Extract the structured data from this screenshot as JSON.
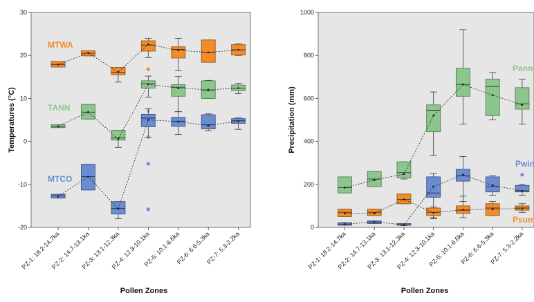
{
  "chart_data": [
    {
      "type": "box",
      "xlabel": "Pollen Zones",
      "ylabel": "Temperatures (°C)",
      "ylim": [
        -20,
        30
      ],
      "yticks": [
        -20,
        -10,
        0,
        10,
        20,
        30
      ],
      "grid": false,
      "categories": [
        "PZ-1: 18.2-14.7ka",
        "PZ-2: 14.7-13.1ka",
        "PZ-3: 13.1-12.3ka",
        "PZ-4: 12.3-10.1ka",
        "PZ-5: 10.1-6.6ka",
        "PZ-6: 6.6-5.3ka",
        "PZ-7: 5.3-2.2ka"
      ],
      "series": [
        {
          "name": "MTWA",
          "color": "#f28c28",
          "boxes": [
            {
              "min": 17.3,
              "q1": 17.3,
              "median": 17.9,
              "q3": 18.6,
              "max": 18.6,
              "outliers": []
            },
            {
              "min": 19.9,
              "q1": 19.9,
              "median": 20.5,
              "q3": 21.1,
              "max": 21.1,
              "outliers": []
            },
            {
              "min": 13.8,
              "q1": 15.5,
              "median": 16.1,
              "q3": 17.2,
              "max": 17.2,
              "outliers": []
            },
            {
              "min": 19.5,
              "q1": 21.0,
              "median": 22.4,
              "q3": 23.4,
              "max": 24.0,
              "outliers": [
                16.8
              ]
            },
            {
              "min": 16.4,
              "q1": 19.4,
              "median": 21.4,
              "q3": 22.0,
              "max": 24.0,
              "outliers": []
            },
            {
              "min": 18.4,
              "q1": 18.4,
              "median": 20.7,
              "q3": 23.6,
              "max": 23.6,
              "outliers": []
            },
            {
              "min": 20.0,
              "q1": 20.1,
              "median": 21.3,
              "q3": 22.5,
              "max": 22.7,
              "outliers": []
            }
          ],
          "means": [
            17.9,
            20.6,
            16.1,
            22.6,
            21.2,
            20.7,
            21.3
          ]
        },
        {
          "name": "TANN",
          "color": "#8cc68c",
          "boxes": [
            {
              "min": 3.2,
              "q1": 3.2,
              "median": 3.5,
              "q3": 3.9,
              "max": 3.9,
              "outliers": []
            },
            {
              "min": 5.2,
              "q1": 5.2,
              "median": 6.8,
              "q3": 8.6,
              "max": 8.6,
              "outliers": []
            },
            {
              "min": -1.4,
              "q1": 0.3,
              "median": 0.8,
              "q3": 2.6,
              "max": 2.6,
              "outliers": []
            },
            {
              "min": 10.3,
              "q1": 12.4,
              "median": 13.4,
              "q3": 14.1,
              "max": 15.2,
              "outliers": [
                7.1,
                1.0
              ]
            },
            {
              "min": 6.9,
              "q1": 10.5,
              "median": 12.6,
              "q3": 13.2,
              "max": 15.1,
              "outliers": []
            },
            {
              "min": 10.0,
              "q1": 10.0,
              "median": 11.8,
              "q3": 14.1,
              "max": 14.2,
              "outliers": []
            },
            {
              "min": 11.1,
              "q1": 11.8,
              "median": 12.4,
              "q3": 13.1,
              "max": 13.5,
              "outliers": []
            }
          ],
          "means": [
            3.5,
            6.8,
            0.6,
            13.3,
            12.4,
            12.0,
            12.4
          ]
        },
        {
          "name": "MTCO",
          "color": "#6a8cd2",
          "boxes": [
            {
              "min": -13.2,
              "q1": -13.2,
              "median": -12.7,
              "q3": -12.3,
              "max": -12.3,
              "outliers": []
            },
            {
              "min": -11.3,
              "q1": -11.3,
              "median": -8.2,
              "q3": -5.3,
              "max": -5.3,
              "outliers": []
            },
            {
              "min": -18.0,
              "q1": -16.9,
              "median": -15.6,
              "q3": -14.0,
              "max": -14.0,
              "outliers": []
            },
            {
              "min": 1.0,
              "q1": 3.4,
              "median": 5.4,
              "q3": 6.3,
              "max": 7.6,
              "outliers": [
                -5.2,
                -15.8
              ]
            },
            {
              "min": 1.6,
              "q1": 3.5,
              "median": 4.7,
              "q3": 5.6,
              "max": 6.9,
              "outliers": []
            },
            {
              "min": 2.5,
              "q1": 2.9,
              "median": 3.9,
              "q3": 6.2,
              "max": 6.4,
              "outliers": []
            },
            {
              "min": 2.8,
              "q1": 4.2,
              "median": 4.8,
              "q3": 5.3,
              "max": 5.5,
              "outliers": []
            }
          ],
          "means": [
            -12.8,
            -8.2,
            -15.7,
            5.0,
            4.6,
            3.7,
            4.7
          ]
        }
      ]
    },
    {
      "type": "box",
      "xlabel": "Pollen Zones",
      "ylabel": "Precipitation (mm)",
      "ylim": [
        0,
        1000
      ],
      "yticks": [
        0,
        200,
        400,
        600,
        800,
        1000
      ],
      "grid": false,
      "categories": [
        "PZ-1: 18.2-14.7ka",
        "PZ-2: 14.7-13.1ka",
        "PZ-3: 13.1-12.3ka",
        "PZ-4: 12.3-10.1ka",
        "PZ-5: 10.1-6.6ka",
        "PZ-6: 6.6-5.3ka",
        "PZ-7: 5.3-2.2ka"
      ],
      "series": [
        {
          "name": "Pann",
          "color": "#8cc68c",
          "boxes": [
            {
              "min": 160,
              "q1": 160,
              "median": 185,
              "q3": 235,
              "max": 235,
              "outliers": []
            },
            {
              "min": 190,
              "q1": 190,
              "median": 225,
              "q3": 260,
              "max": 260,
              "outliers": []
            },
            {
              "min": 225,
              "q1": 230,
              "median": 255,
              "q3": 305,
              "max": 305,
              "outliers": []
            },
            {
              "min": 335,
              "q1": 445,
              "median": 545,
              "q3": 570,
              "max": 630,
              "outliers": []
            },
            {
              "min": 480,
              "q1": 610,
              "median": 665,
              "q3": 740,
              "max": 920,
              "outliers": []
            },
            {
              "min": 500,
              "q1": 520,
              "median": 655,
              "q3": 690,
              "max": 720,
              "outliers": []
            },
            {
              "min": 480,
              "q1": 550,
              "median": 575,
              "q3": 650,
              "max": 690,
              "outliers": []
            }
          ],
          "means": [
            185,
            220,
            248,
            520,
            665,
            615,
            570
          ]
        },
        {
          "name": "Pwin",
          "color": "#6a8cd2",
          "boxes": [
            {
              "min": 10,
              "q1": 10,
              "median": 15,
              "q3": 22,
              "max": 22,
              "outliers": []
            },
            {
              "min": 18,
              "q1": 18,
              "median": 25,
              "q3": 30,
              "max": 30,
              "outliers": []
            },
            {
              "min": 8,
              "q1": 10,
              "median": 12,
              "q3": 18,
              "max": 18,
              "outliers": []
            },
            {
              "min": 40,
              "q1": 140,
              "median": 160,
              "q3": 235,
              "max": 250,
              "outliers": []
            },
            {
              "min": 120,
              "q1": 215,
              "median": 240,
              "q3": 270,
              "max": 330,
              "outliers": []
            },
            {
              "min": 150,
              "q1": 165,
              "median": 190,
              "q3": 235,
              "max": 240,
              "outliers": []
            },
            {
              "min": 150,
              "q1": 165,
              "median": 170,
              "q3": 195,
              "max": 200,
              "outliers": [
                245
              ]
            }
          ],
          "means": [
            15,
            25,
            12,
            190,
            245,
            195,
            170
          ]
        },
        {
          "name": "Psum",
          "color": "#f28c28",
          "boxes": [
            {
              "min": 50,
              "q1": 50,
              "median": 70,
              "q3": 85,
              "max": 85,
              "outliers": []
            },
            {
              "min": 55,
              "q1": 55,
              "median": 70,
              "q3": 85,
              "max": 85,
              "outliers": []
            },
            {
              "min": 110,
              "q1": 110,
              "median": 130,
              "q3": 155,
              "max": 155,
              "outliers": []
            },
            {
              "min": 45,
              "q1": 55,
              "median": 70,
              "q3": 90,
              "max": 95,
              "outliers": []
            },
            {
              "min": 45,
              "q1": 65,
              "median": 80,
              "q3": 100,
              "max": 145,
              "outliers": []
            },
            {
              "min": 55,
              "q1": 55,
              "median": 90,
              "q3": 110,
              "max": 120,
              "outliers": []
            },
            {
              "min": 70,
              "q1": 80,
              "median": 90,
              "q3": 100,
              "max": 110,
              "outliers": []
            }
          ],
          "means": [
            65,
            65,
            130,
            68,
            82,
            85,
            88
          ]
        }
      ]
    }
  ]
}
